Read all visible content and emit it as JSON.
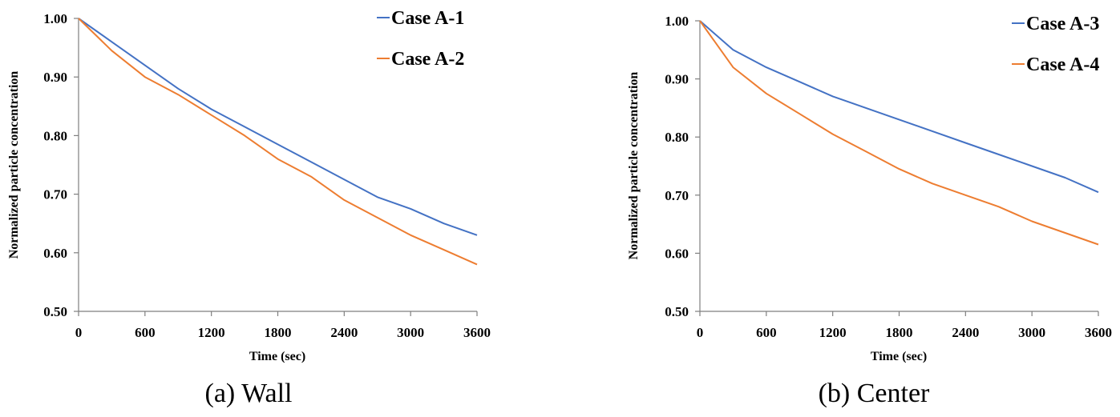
{
  "chart_data": [
    {
      "type": "line",
      "caption": "(a) Wall",
      "xlabel": "Time (sec)",
      "ylabel": "Normalized particle concentration",
      "xlim": [
        0,
        3600
      ],
      "ylim": [
        0.5,
        1.0
      ],
      "xticks": [
        "0",
        "600",
        "1200",
        "1800",
        "2400",
        "3000",
        "3600"
      ],
      "yticks": [
        "0.50",
        "0.60",
        "0.70",
        "0.80",
        "0.90",
        "1.00"
      ],
      "legend_position": "top-right",
      "grid": false,
      "series": [
        {
          "name": "Case A-1",
          "color": "#4472C4",
          "x": [
            0,
            300,
            600,
            900,
            1200,
            1500,
            1800,
            2100,
            2400,
            2700,
            3000,
            3300,
            3600
          ],
          "y": [
            1.0,
            0.96,
            0.92,
            0.88,
            0.845,
            0.815,
            0.785,
            0.755,
            0.725,
            0.695,
            0.675,
            0.65,
            0.63
          ]
        },
        {
          "name": "Case A-2",
          "color": "#ED7D31",
          "x": [
            0,
            300,
            600,
            900,
            1200,
            1500,
            1800,
            2100,
            2400,
            2700,
            3000,
            3300,
            3600
          ],
          "y": [
            1.0,
            0.945,
            0.9,
            0.87,
            0.835,
            0.8,
            0.76,
            0.73,
            0.69,
            0.66,
            0.63,
            0.605,
            0.58
          ]
        }
      ]
    },
    {
      "type": "line",
      "caption": "(b) Center",
      "xlabel": "Time (sec)",
      "ylabel": "Normalized particle concentration",
      "xlim": [
        0,
        3600
      ],
      "ylim": [
        0.5,
        1.0
      ],
      "xticks": [
        "0",
        "600",
        "1200",
        "1800",
        "2400",
        "3000",
        "3600"
      ],
      "yticks": [
        "0.50",
        "0.60",
        "0.70",
        "0.80",
        "0.90",
        "1.00"
      ],
      "legend_position": "top-right",
      "grid": false,
      "series": [
        {
          "name": "Case A-3",
          "color": "#4472C4",
          "x": [
            0,
            300,
            600,
            900,
            1200,
            1500,
            1800,
            2100,
            2400,
            2700,
            3000,
            3300,
            3600
          ],
          "y": [
            1.0,
            0.95,
            0.92,
            0.895,
            0.87,
            0.85,
            0.83,
            0.81,
            0.79,
            0.77,
            0.75,
            0.73,
            0.705
          ]
        },
        {
          "name": "Case A-4",
          "color": "#ED7D31",
          "x": [
            0,
            300,
            600,
            900,
            1200,
            1500,
            1800,
            2100,
            2400,
            2700,
            3000,
            3300,
            3600
          ],
          "y": [
            1.0,
            0.92,
            0.875,
            0.84,
            0.805,
            0.775,
            0.745,
            0.72,
            0.7,
            0.68,
            0.655,
            0.635,
            0.615
          ]
        }
      ]
    }
  ]
}
